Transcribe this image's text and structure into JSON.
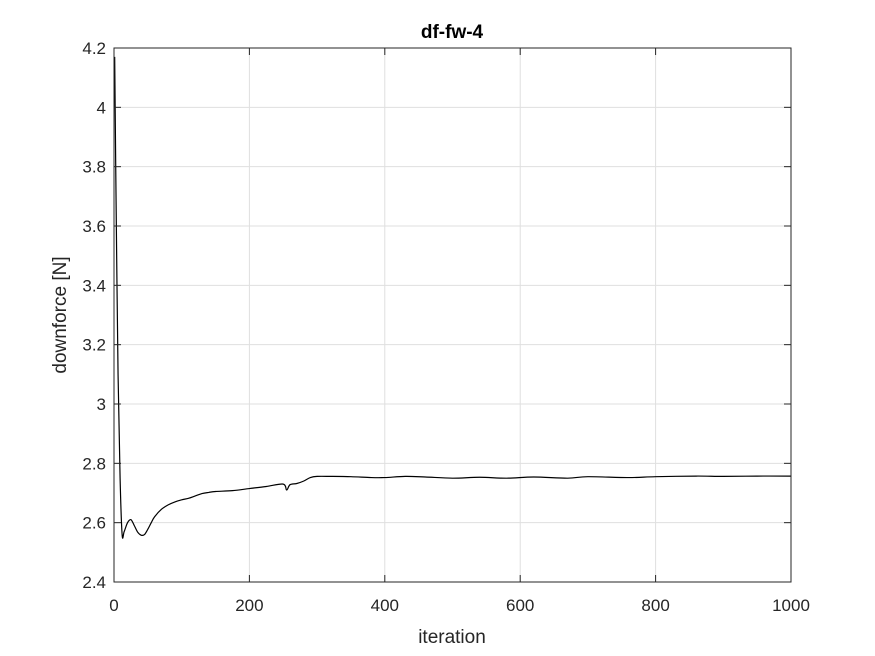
{
  "chart_data": {
    "type": "line",
    "title": "df-fw-4",
    "xlabel": "iteration",
    "ylabel": "downforce [N]",
    "xlim": [
      0,
      1000
    ],
    "ylim": [
      2.4,
      4.2
    ],
    "xticks": [
      0,
      200,
      400,
      600,
      800,
      1000
    ],
    "yticks": [
      2.4,
      2.6,
      2.8,
      3,
      3.2,
      3.4,
      3.6,
      3.8,
      4,
      4.2
    ],
    "xtick_labels": [
      "0",
      "200",
      "400",
      "600",
      "800",
      "1000"
    ],
    "ytick_labels": [
      "2.4",
      "2.6",
      "2.8",
      "3",
      "3.2",
      "3.4",
      "3.6",
      "3.8",
      "4",
      "4.2"
    ],
    "grid": true,
    "colors": {
      "line": "#000000",
      "grid": "#dfdfdf",
      "axis": "#262626"
    },
    "series": [
      {
        "name": "downforce",
        "x": [
          1,
          3,
          6,
          9,
          12,
          15,
          20,
          25,
          30,
          35,
          40,
          45,
          50,
          55,
          60,
          70,
          80,
          90,
          100,
          110,
          120,
          130,
          140,
          150,
          175,
          200,
          225,
          250,
          255,
          260,
          270,
          280,
          290,
          300,
          320,
          350,
          380,
          400,
          430,
          460,
          500,
          540,
          580,
          620,
          670,
          700,
          760,
          800,
          860,
          900,
          950,
          1000
        ],
        "values": [
          4.17,
          3.7,
          3.1,
          2.75,
          2.56,
          2.57,
          2.6,
          2.61,
          2.59,
          2.568,
          2.558,
          2.56,
          2.578,
          2.6,
          2.62,
          2.645,
          2.66,
          2.67,
          2.677,
          2.682,
          2.69,
          2.698,
          2.702,
          2.705,
          2.708,
          2.715,
          2.722,
          2.73,
          2.71,
          2.728,
          2.732,
          2.74,
          2.752,
          2.756,
          2.756,
          2.755,
          2.752,
          2.752,
          2.756,
          2.754,
          2.75,
          2.753,
          2.75,
          2.754,
          2.75,
          2.755,
          2.752,
          2.755,
          2.757,
          2.756,
          2.757,
          2.757
        ]
      }
    ]
  }
}
